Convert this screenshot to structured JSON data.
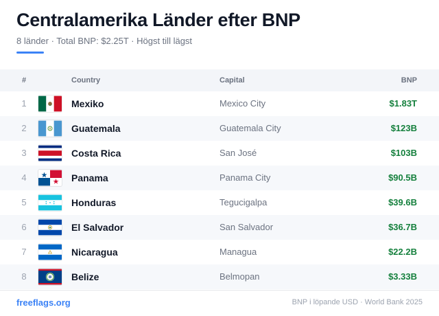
{
  "header": {
    "title": "Centralamerika Länder efter BNP",
    "subtitle": "8 länder · Total BNP: $2.25T · Högst till lägst",
    "accent_color": "#3b82f6"
  },
  "table": {
    "columns": {
      "rank": "#",
      "country": "Country",
      "capital": "Capital",
      "gdp": "BNP"
    },
    "rows": [
      {
        "rank": "1",
        "flag": "mexico-flag-icon",
        "country": "Mexiko",
        "capital": "Mexico City",
        "gdp": "$1.83T"
      },
      {
        "rank": "2",
        "flag": "guatemala-flag-icon",
        "country": "Guatemala",
        "capital": "Guatemala City",
        "gdp": "$123B"
      },
      {
        "rank": "3",
        "flag": "costa-rica-flag-icon",
        "country": "Costa Rica",
        "capital": "San José",
        "gdp": "$103B"
      },
      {
        "rank": "4",
        "flag": "panama-flag-icon",
        "country": "Panama",
        "capital": "Panama City",
        "gdp": "$90.5B"
      },
      {
        "rank": "5",
        "flag": "honduras-flag-icon",
        "country": "Honduras",
        "capital": "Tegucigalpa",
        "gdp": "$39.6B"
      },
      {
        "rank": "6",
        "flag": "el-salvador-flag-icon",
        "country": "El Salvador",
        "capital": "San Salvador",
        "gdp": "$36.7B"
      },
      {
        "rank": "7",
        "flag": "nicaragua-flag-icon",
        "country": "Nicaragua",
        "capital": "Managua",
        "gdp": "$22.2B"
      },
      {
        "rank": "8",
        "flag": "belize-flag-icon",
        "country": "Belize",
        "capital": "Belmopan",
        "gdp": "$3.33B"
      }
    ],
    "gdp_color": "#15803d"
  },
  "footer": {
    "brand": "freeflags.org",
    "source": "BNP i löpande USD · World Bank 2025"
  }
}
